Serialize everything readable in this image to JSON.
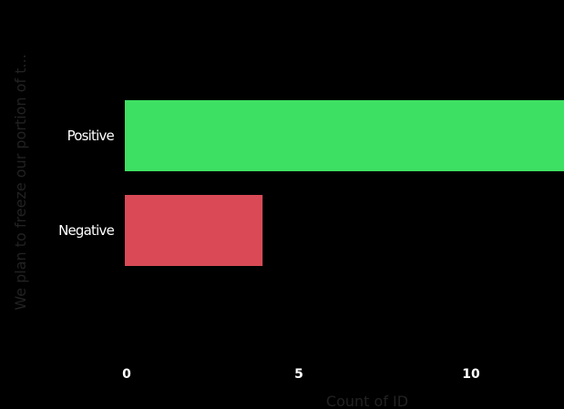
{
  "chart_data": {
    "type": "bar",
    "orientation": "horizontal",
    "categories": [
      "Positive",
      "Negative"
    ],
    "values": [
      13,
      4
    ],
    "colors": [
      "#3ee063",
      "#d94a56"
    ],
    "xlabel": "Count of ID",
    "ylabel": "We plan to freeze our portion of t...",
    "xticks": [
      "0",
      "5",
      "10"
    ],
    "xlim": [
      0,
      13
    ],
    "grid": false,
    "legend": "none"
  },
  "colors": {
    "background": "#000000",
    "axis_title": "#222222",
    "label": "#ffffff"
  }
}
